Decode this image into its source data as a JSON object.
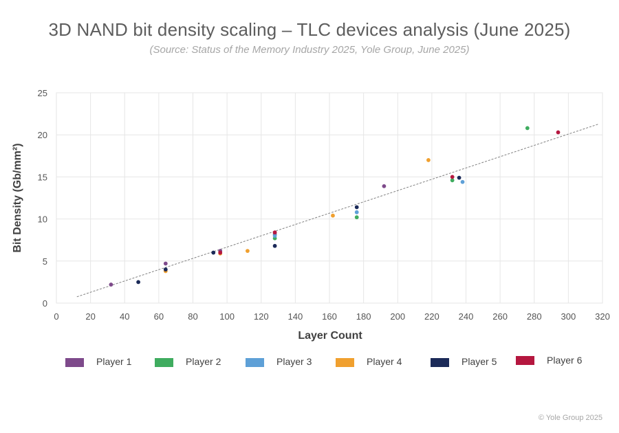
{
  "header": {
    "title": "3D NAND bit density scaling – TLC devices analysis (June 2025)",
    "subtitle": "(Source: Status of the Memory Industry 2025, Yole Group, June 2025)"
  },
  "footer": {
    "copyright": "© Yole Group 2025"
  },
  "chart_data": {
    "type": "scatter",
    "title": "3D NAND bit density scaling – TLC devices analysis (June 2025)",
    "subtitle": "(Source: Status of the Memory Industry 2025, Yole Group, June 2025)",
    "xlabel": "Layer Count",
    "ylabel": "Bit Density (Gb/mm²)",
    "xlim": [
      0,
      320
    ],
    "ylim": [
      0,
      25
    ],
    "xticks": [
      0,
      20,
      40,
      60,
      80,
      100,
      120,
      140,
      160,
      180,
      200,
      220,
      240,
      260,
      280,
      300,
      320
    ],
    "yticks": [
      0,
      5,
      10,
      15,
      20,
      25
    ],
    "grid": true,
    "legend_position": "bottom",
    "trendline": {
      "style": "dashed",
      "color": "#808080",
      "x": [
        12,
        318
      ],
      "y": [
        0.75,
        21.3
      ]
    },
    "series": [
      {
        "name": "Player 1",
        "color": "#7e4a8b",
        "points": [
          [
            32,
            2.2
          ],
          [
            64,
            4.7
          ],
          [
            96,
            6.2
          ],
          [
            128,
            8.2
          ],
          [
            192,
            13.9
          ]
        ]
      },
      {
        "name": "Player 2",
        "color": "#3fac5f",
        "points": [
          [
            128,
            7.7
          ],
          [
            176,
            10.2
          ],
          [
            232,
            14.6
          ],
          [
            276,
            20.8
          ]
        ]
      },
      {
        "name": "Player 3",
        "color": "#5ea0d7",
        "points": [
          [
            128,
            8.0
          ],
          [
            176,
            10.8
          ],
          [
            238,
            14.4
          ]
        ]
      },
      {
        "name": "Player 4",
        "color": "#f0a02f",
        "points": [
          [
            64,
            3.8
          ],
          [
            96,
            5.9
          ],
          [
            112,
            6.2
          ],
          [
            162,
            10.4
          ],
          [
            218,
            17.0
          ]
        ]
      },
      {
        "name": "Player 5",
        "color": "#1b2a58",
        "points": [
          [
            48,
            2.5
          ],
          [
            64,
            4.0
          ],
          [
            92,
            6.0
          ],
          [
            128,
            6.8
          ],
          [
            176,
            11.4
          ],
          [
            236,
            14.9
          ]
        ]
      },
      {
        "name": "Player 6",
        "color": "#b5173f",
        "points": [
          [
            96,
            6.0
          ],
          [
            128,
            8.4
          ],
          [
            232,
            15.0
          ],
          [
            294,
            20.3
          ]
        ]
      }
    ]
  }
}
